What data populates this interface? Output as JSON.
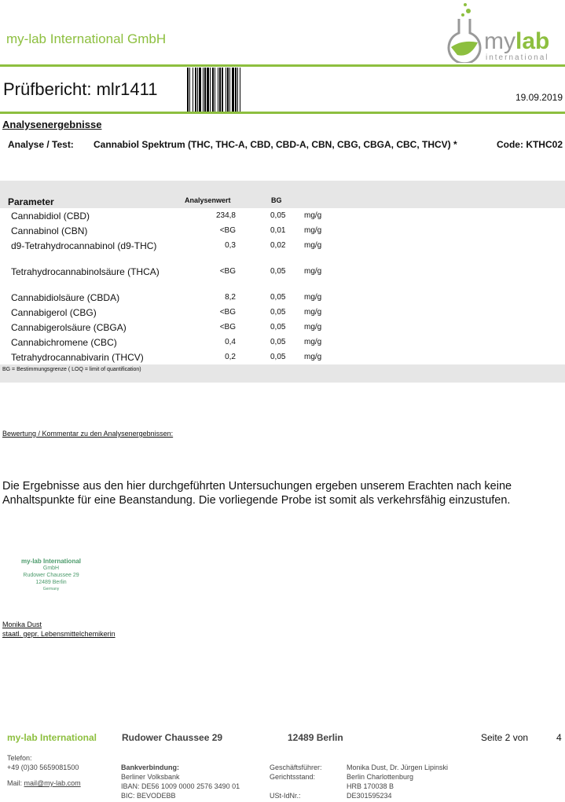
{
  "header": {
    "company": "my-lab International GmbH",
    "logo_text": "mylab",
    "logo_sub": "international",
    "report_title": "Prüfbericht: mlr1411",
    "date": "19.09.2019"
  },
  "analysis": {
    "heading": "Analysenergebnisse",
    "label": "Analyse / Test:",
    "value": "Cannabiol Spektrum (THC, THC-A, CBD, CBD-A, CBN, CBG, CBGA, CBC, THCV) *",
    "code": "Code: KTHC02"
  },
  "table": {
    "headers": [
      "Parameter",
      "Analysenwert",
      "BG"
    ],
    "rows": [
      {
        "param": "Cannabidiol (CBD)",
        "value": "234,8",
        "bg": "0,05",
        "unit": "mg/g"
      },
      {
        "param": "Cannabinol (CBN)",
        "value": "<BG",
        "bg": "0,01",
        "unit": "mg/g"
      },
      {
        "param": "d9-Tetrahydrocannabinol (d9-THC)",
        "value": "0,3",
        "bg": "0,02",
        "unit": "mg/g"
      },
      {
        "param": "Tetrahydrocannabinolsäure (THCA)",
        "value": "<BG",
        "bg": "0,05",
        "unit": "mg/g"
      },
      {
        "param": "Cannabidiolsäure (CBDA)",
        "value": "8,2",
        "bg": "0,05",
        "unit": "mg/g"
      },
      {
        "param": "Cannabigerol (CBG)",
        "value": "<BG",
        "bg": "0,05",
        "unit": "mg/g"
      },
      {
        "param": "Cannabigerolsäure (CBGA)",
        "value": "<BG",
        "bg": "0,05",
        "unit": "mg/g"
      },
      {
        "param": "Cannabichromene (CBC)",
        "value": "0,4",
        "bg": "0,05",
        "unit": "mg/g"
      },
      {
        "param": "Tetrahydrocannabivarin (THCV)",
        "value": "0,2",
        "bg": "0,05",
        "unit": "mg/g"
      }
    ],
    "footnote": "BG = Bestimmungsgrenze ( LOQ = limit of quantification)"
  },
  "comment": {
    "heading": "Bewertung / Kommentar zu den Analysenergebnissen:",
    "text": "Die Ergebnisse aus den hier durchgeführten Untersuchungen ergeben unserem Erachten nach keine Anhaltspunkte für eine Beanstandung. Die vorliegende Probe ist somit als verkehrsfähig einzustufen."
  },
  "stamp": {
    "lines": [
      "my-lab International",
      "GmbH",
      "Rudower Chaussee 29",
      "12489 Berlin",
      "Germany"
    ]
  },
  "signature": {
    "name": "Monika Dust",
    "role": "staatl. gepr. Lebensmittelchemikerin"
  },
  "footer": {
    "brand": "my-lab International",
    "street": "Rudower Chaussee 29",
    "city": "12489 Berlin",
    "page_label": "Seite 2  von",
    "page_total": "4",
    "phone_label": "Telefon:",
    "phone": "+49 (0)30 5659081500",
    "mail_label": "Mail:",
    "mail": "mail@my-lab.com",
    "bank_label": "Bankverbindung:",
    "bank": "Berliner Volksbank",
    "iban": "IBAN: DE56 1009 0000 2576 3490 01",
    "bic": "BIC: BEVODEBB",
    "gf_label": "Geschäftsführer:",
    "gf": "Monika Dust, Dr. Jürgen Lipinski",
    "gs_label": "Gerichtsstand:",
    "gs": "Berlin Charlottenburg",
    "hrb": "HRB 170038 B",
    "ust_label": "USt-IdNr.:",
    "ust": "DE301595234"
  },
  "colors": {
    "brand_green": "#8dbf3f",
    "band_gray": "#e6e6e6"
  }
}
